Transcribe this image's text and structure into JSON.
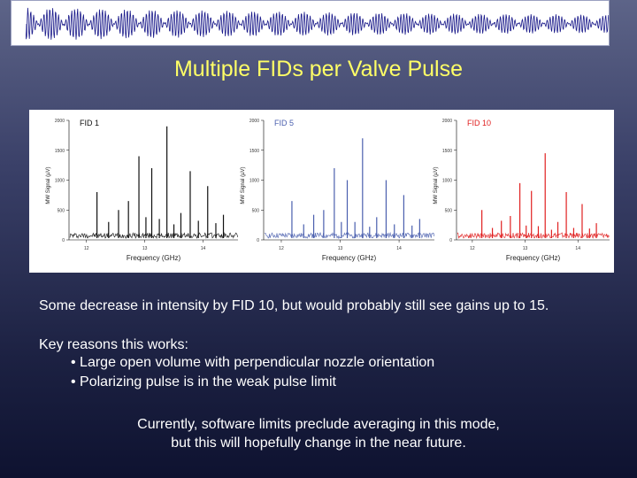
{
  "slide": {
    "title": "Multiple FIDs per Valve Pulse",
    "summary": "Some decrease in intensity by FID 10, but would probably still see gains up to 15.",
    "key_reasons": {
      "heading": "Key reasons this works:",
      "bullets": [
        "• Large open volume with perpendicular nozzle orientation",
        "• Polarizing pulse is in the weak pulse limit"
      ]
    },
    "note_lines": [
      "Currently, software limits preclude averaging in this mode,",
      "but this will hopefully change in the near future."
    ]
  },
  "colors": {
    "title": "#ffff66",
    "text": "#ffffff",
    "fid1": "#111111",
    "fid5": "#4a5fae",
    "fid10": "#e02020"
  },
  "chart_data": [
    {
      "type": "line",
      "title": "FID 1",
      "xlabel": "Frequency (GHz)",
      "ylabel": "MW Signal (µV)",
      "ylim": [
        0,
        2000
      ],
      "yticks": [
        "0",
        "500",
        "1000",
        "1500",
        "2000"
      ],
      "xticks": [
        "12",
        "13",
        "14"
      ],
      "color": "#111111",
      "peaks": [
        {
          "x": 12.18,
          "y": 800
        },
        {
          "x": 12.38,
          "y": 300
        },
        {
          "x": 12.55,
          "y": 500
        },
        {
          "x": 12.72,
          "y": 650
        },
        {
          "x": 12.9,
          "y": 1400
        },
        {
          "x": 13.02,
          "y": 380
        },
        {
          "x": 13.12,
          "y": 1200
        },
        {
          "x": 13.25,
          "y": 350
        },
        {
          "x": 13.38,
          "y": 1900
        },
        {
          "x": 13.5,
          "y": 260
        },
        {
          "x": 13.62,
          "y": 450
        },
        {
          "x": 13.78,
          "y": 1150
        },
        {
          "x": 13.92,
          "y": 320
        },
        {
          "x": 14.08,
          "y": 900
        },
        {
          "x": 14.22,
          "y": 280
        },
        {
          "x": 14.35,
          "y": 420
        }
      ]
    },
    {
      "type": "line",
      "title": "FID 5",
      "xlabel": "Frequency (GHz)",
      "ylabel": "MW Signal (µV)",
      "ylim": [
        0,
        2000
      ],
      "yticks": [
        "0",
        "500",
        "1000",
        "1500",
        "2000"
      ],
      "xticks": [
        "12",
        "13",
        "14"
      ],
      "color": "#4a5fae",
      "peaks": [
        {
          "x": 12.18,
          "y": 650
        },
        {
          "x": 12.38,
          "y": 260
        },
        {
          "x": 12.55,
          "y": 420
        },
        {
          "x": 12.72,
          "y": 500
        },
        {
          "x": 12.9,
          "y": 1200
        },
        {
          "x": 13.02,
          "y": 300
        },
        {
          "x": 13.12,
          "y": 1000
        },
        {
          "x": 13.25,
          "y": 300
        },
        {
          "x": 13.38,
          "y": 1700
        },
        {
          "x": 13.5,
          "y": 220
        },
        {
          "x": 13.62,
          "y": 380
        },
        {
          "x": 13.78,
          "y": 1000
        },
        {
          "x": 13.92,
          "y": 260
        },
        {
          "x": 14.08,
          "y": 750
        },
        {
          "x": 14.22,
          "y": 240
        },
        {
          "x": 14.35,
          "y": 350
        }
      ]
    },
    {
      "type": "line",
      "title": "FID 10",
      "xlabel": "Frequency (GHz)",
      "ylabel": "MW Signal (µV)",
      "ylim": [
        0,
        2000
      ],
      "yticks": [
        "0",
        "500",
        "1000",
        "1500",
        "2000"
      ],
      "xticks": [
        "12",
        "13",
        "14"
      ],
      "color": "#e02020",
      "peaks": [
        {
          "x": 12.18,
          "y": 500
        },
        {
          "x": 12.38,
          "y": 200
        },
        {
          "x": 12.55,
          "y": 320
        },
        {
          "x": 12.72,
          "y": 400
        },
        {
          "x": 12.9,
          "y": 950
        },
        {
          "x": 13.02,
          "y": 240
        },
        {
          "x": 13.12,
          "y": 820
        },
        {
          "x": 13.25,
          "y": 230
        },
        {
          "x": 13.38,
          "y": 1450
        },
        {
          "x": 13.5,
          "y": 170
        },
        {
          "x": 13.62,
          "y": 300
        },
        {
          "x": 13.78,
          "y": 800
        },
        {
          "x": 13.92,
          "y": 200
        },
        {
          "x": 14.08,
          "y": 600
        },
        {
          "x": 14.22,
          "y": 190
        },
        {
          "x": 14.35,
          "y": 280
        }
      ]
    }
  ]
}
